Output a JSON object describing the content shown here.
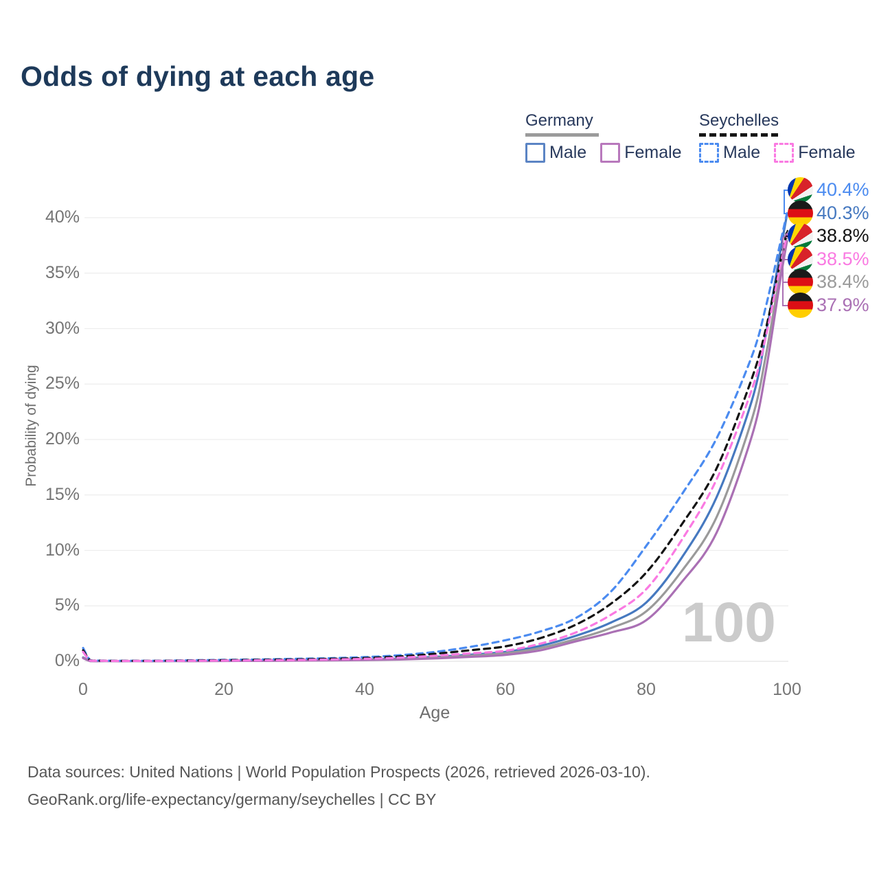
{
  "title": "Odds of dying at each age",
  "legend": {
    "germany": {
      "name": "Germany",
      "male_label": "Male",
      "female_label": "Female"
    },
    "seychelles": {
      "name": "Seychelles",
      "male_label": "Male",
      "female_label": "Female"
    }
  },
  "watermark": "100",
  "footer": {
    "line1": "Data sources: United Nations | World Population Prospects (2026, retrieved 2026-03-10).",
    "line2": "GeoRank.org/life-expectancy/germany/seychelles | CC BY"
  },
  "chart_data": {
    "type": "line",
    "title": "Odds of dying at each age",
    "xlabel": "Age",
    "ylabel": "Probability of dying",
    "xlim": [
      0,
      100
    ],
    "ylim": [
      0,
      42
    ],
    "grid": "horizontal-only",
    "x_ticks": [
      0,
      20,
      40,
      60,
      80,
      100
    ],
    "x_tick_labels": [
      "0",
      "20",
      "40",
      "60",
      "80",
      "100"
    ],
    "y_ticks": [
      0,
      5,
      10,
      15,
      20,
      25,
      30,
      35,
      40
    ],
    "y_tick_labels": [
      "0%",
      "5%",
      "10%",
      "15%",
      "20%",
      "25%",
      "30%",
      "35%",
      "40%"
    ],
    "legend_position": "top-right",
    "x": [
      0,
      1,
      2,
      5,
      10,
      15,
      20,
      25,
      30,
      35,
      40,
      45,
      50,
      55,
      60,
      65,
      70,
      75,
      80,
      85,
      90,
      95,
      97,
      99,
      100
    ],
    "series": [
      {
        "key": "germany_male",
        "name": "Germany Male",
        "country": "Germany",
        "sex": "Male",
        "color": "#4679c0",
        "dashed": false,
        "values": [
          0.35,
          0.03,
          0.02,
          0.01,
          0.01,
          0.03,
          0.05,
          0.07,
          0.09,
          0.12,
          0.17,
          0.25,
          0.4,
          0.6,
          0.85,
          1.4,
          2.3,
          3.5,
          5.3,
          9.3,
          14.8,
          23.5,
          29.5,
          36.8,
          40.3
        ]
      },
      {
        "key": "germany_both",
        "name": "Germany Both sexes",
        "country": "Germany",
        "sex": "Both",
        "color": "#9a9a9a",
        "dashed": false,
        "values": [
          0.32,
          0.03,
          0.02,
          0.01,
          0.01,
          0.02,
          0.04,
          0.05,
          0.07,
          0.1,
          0.14,
          0.2,
          0.33,
          0.5,
          0.72,
          1.2,
          2.0,
          3.0,
          4.5,
          8.1,
          13.0,
          21.8,
          27.6,
          34.9,
          38.4
        ]
      },
      {
        "key": "germany_female",
        "name": "Germany Female",
        "country": "Germany",
        "sex": "Female",
        "color": "#aa70b4",
        "dashed": false,
        "values": [
          0.29,
          0.02,
          0.01,
          0.01,
          0.01,
          0.02,
          0.03,
          0.04,
          0.06,
          0.08,
          0.11,
          0.16,
          0.26,
          0.4,
          0.58,
          1.0,
          1.8,
          2.6,
          3.7,
          7.1,
          11.6,
          20.3,
          26.2,
          34.2,
          37.9
        ]
      },
      {
        "key": "seychelles_male",
        "name": "Seychelles Male",
        "country": "Seychelles",
        "sex": "Male",
        "color": "#4b8bf0",
        "dashed": true,
        "values": [
          1.2,
          0.1,
          0.07,
          0.05,
          0.05,
          0.09,
          0.13,
          0.17,
          0.22,
          0.28,
          0.38,
          0.55,
          0.85,
          1.3,
          1.9,
          2.7,
          3.9,
          6.3,
          10.4,
          15.0,
          20.1,
          27.5,
          32.0,
          37.6,
          40.4
        ]
      },
      {
        "key": "seychelles_both",
        "name": "Seychelles Both sexes",
        "country": "Seychelles",
        "sex": "Both",
        "color": "#141414",
        "dashed": true,
        "values": [
          1.0,
          0.09,
          0.06,
          0.04,
          0.04,
          0.07,
          0.1,
          0.13,
          0.17,
          0.22,
          0.3,
          0.44,
          0.68,
          1.0,
          1.35,
          2.1,
          3.3,
          5.2,
          8.0,
          12.3,
          17.4,
          25.5,
          30.0,
          35.9,
          38.8
        ]
      },
      {
        "key": "seychelles_female",
        "name": "Seychelles Female",
        "country": "Seychelles",
        "sex": "Female",
        "color": "#fa7ae2",
        "dashed": true,
        "values": [
          0.85,
          0.07,
          0.05,
          0.03,
          0.03,
          0.05,
          0.07,
          0.09,
          0.12,
          0.16,
          0.22,
          0.33,
          0.5,
          0.72,
          0.95,
          1.6,
          2.6,
          4.2,
          6.5,
          10.9,
          16.4,
          24.5,
          29.3,
          35.5,
          38.5
        ]
      }
    ],
    "end_labels": [
      {
        "value": "40.4%",
        "pct": 40.4,
        "flag": "seychelles",
        "color": "#4b8bf0",
        "series": "seychelles_male"
      },
      {
        "value": "40.3%",
        "pct": 40.3,
        "flag": "germany",
        "color": "#4679c0",
        "series": "germany_male"
      },
      {
        "value": "38.8%",
        "pct": 38.8,
        "flag": "seychelles",
        "color": "#141414",
        "series": "seychelles_both"
      },
      {
        "value": "38.5%",
        "pct": 38.5,
        "flag": "seychelles",
        "color": "#fa7ae2",
        "series": "seychelles_female"
      },
      {
        "value": "38.4%",
        "pct": 38.4,
        "flag": "germany",
        "color": "#9a9a9a",
        "series": "germany_both"
      },
      {
        "value": "37.9%",
        "pct": 37.9,
        "flag": "germany",
        "color": "#aa70b4",
        "series": "germany_female"
      }
    ]
  }
}
